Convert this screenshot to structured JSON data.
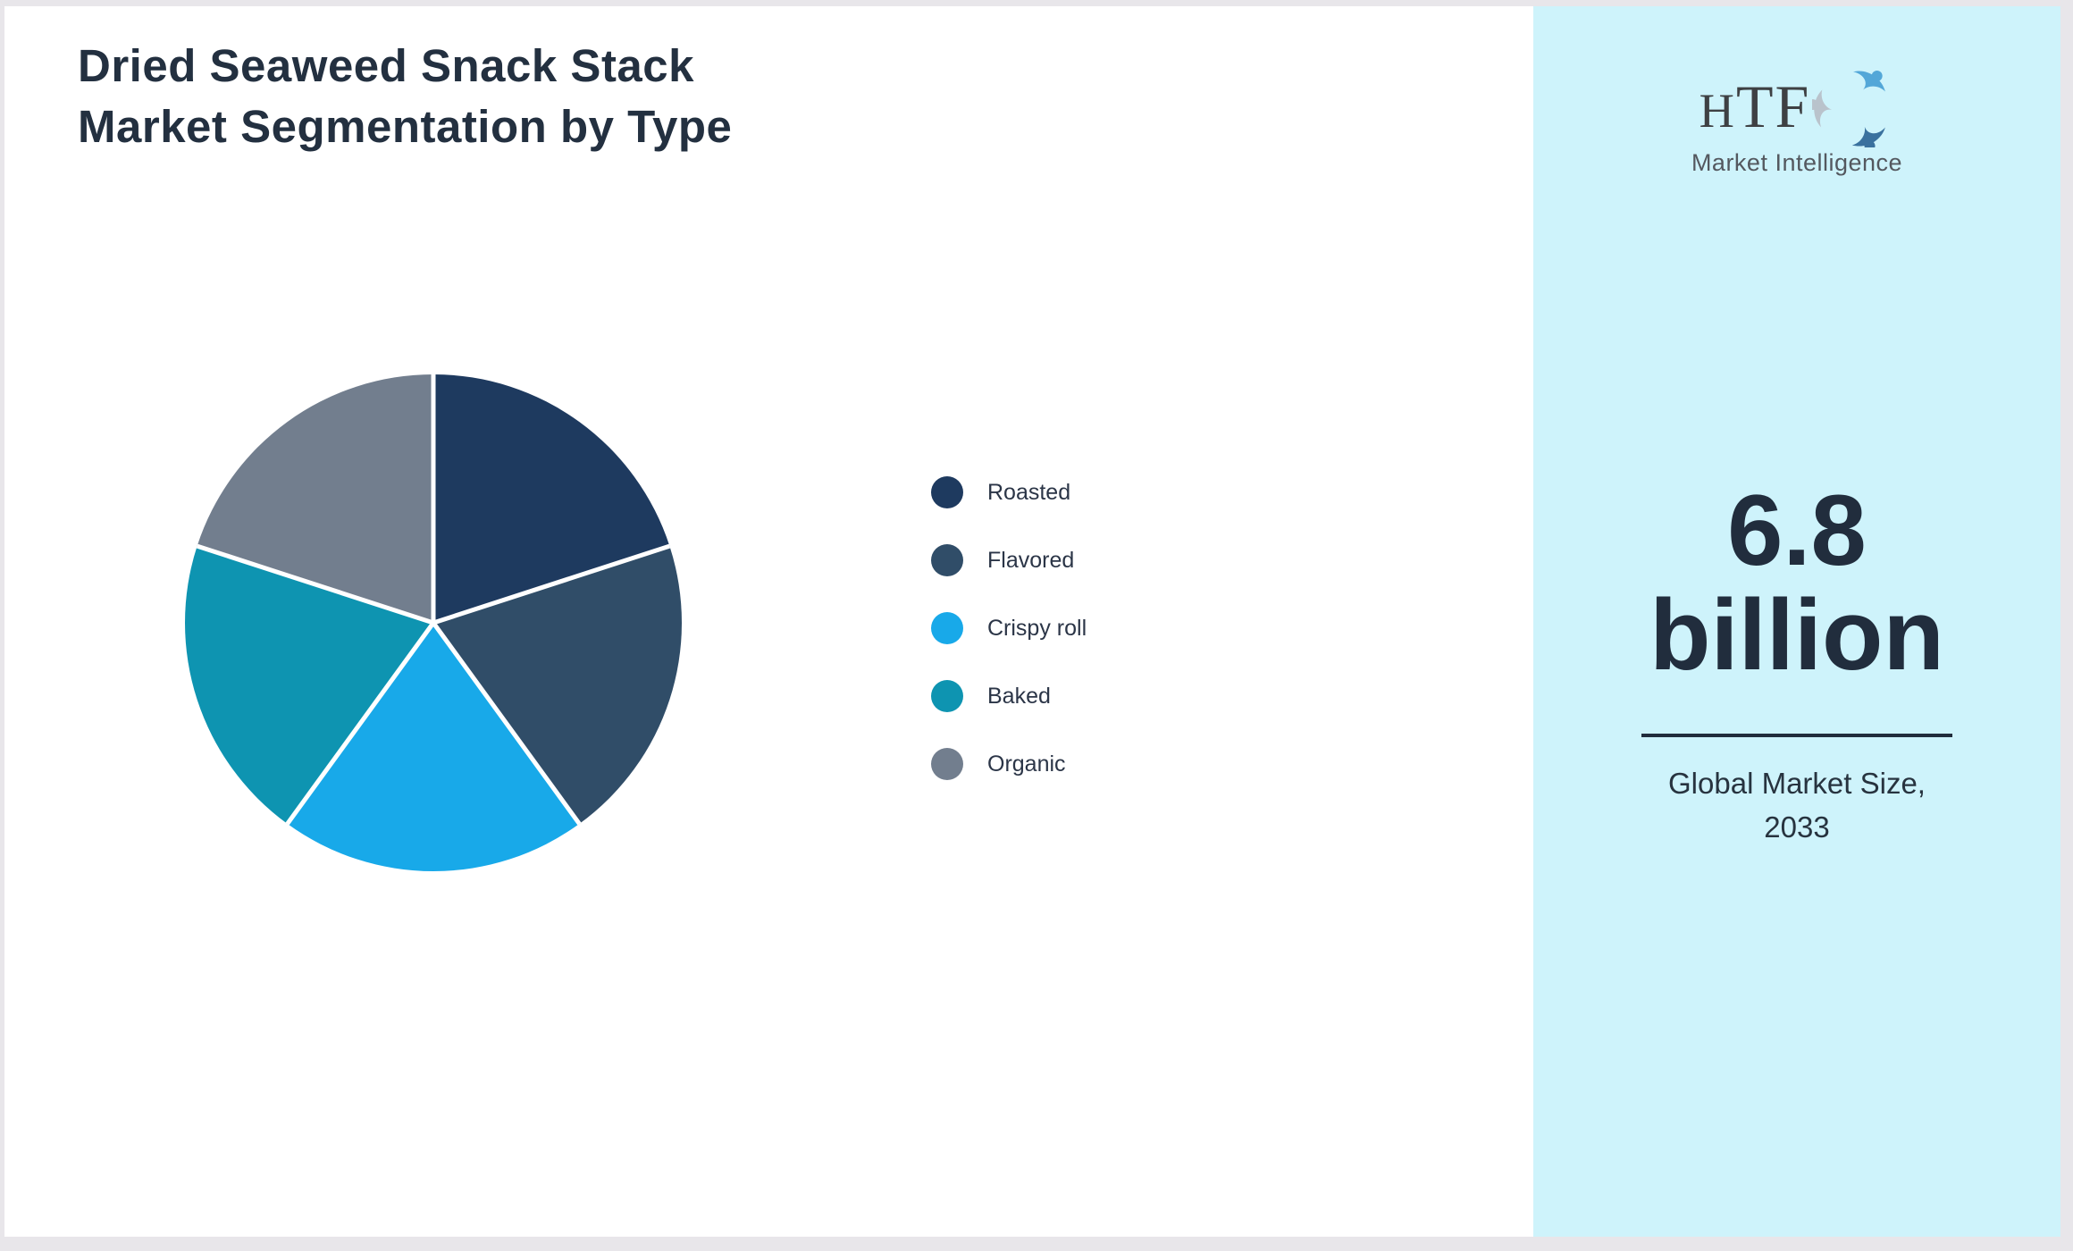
{
  "page": {
    "title_line1": "Dried Seaweed Snack Stack",
    "title_line2": "Market Segmentation by Type"
  },
  "chart_data": {
    "type": "pie",
    "title": "Dried Seaweed Snack Stack Market Segmentation by Type",
    "categories": [
      "Roasted",
      "Flavored",
      "Crispy roll",
      "Baked",
      "Organic"
    ],
    "values": [
      20,
      20,
      20,
      20,
      20
    ],
    "value_unit": "% share (equal 72-degree slices, estimated from arc angles)",
    "colors": [
      "#1e3a5f",
      "#304d68",
      "#18a9e9",
      "#0e94b1",
      "#727e8e"
    ],
    "start_angle_deg_from_12oclock": 0,
    "direction": "clockwise",
    "slice_separator_color": "#ffffff",
    "legend_position": "right-center",
    "data_labels_shown": false
  },
  "sidebar": {
    "background_color": "#cef3fb",
    "logo": {
      "brand": "HTF",
      "tagline": "Market Intelligence"
    },
    "market_size": {
      "value": "6.8",
      "unit": "billion",
      "caption_line1": "Global Market Size,",
      "caption_line2": "2033"
    }
  },
  "colors": {
    "title_text": "#233040",
    "legend_text": "#2b3547",
    "sidebar_text": "#212d3d",
    "frame_border": "#e8e6ea",
    "canvas_background": "#ffffff"
  }
}
